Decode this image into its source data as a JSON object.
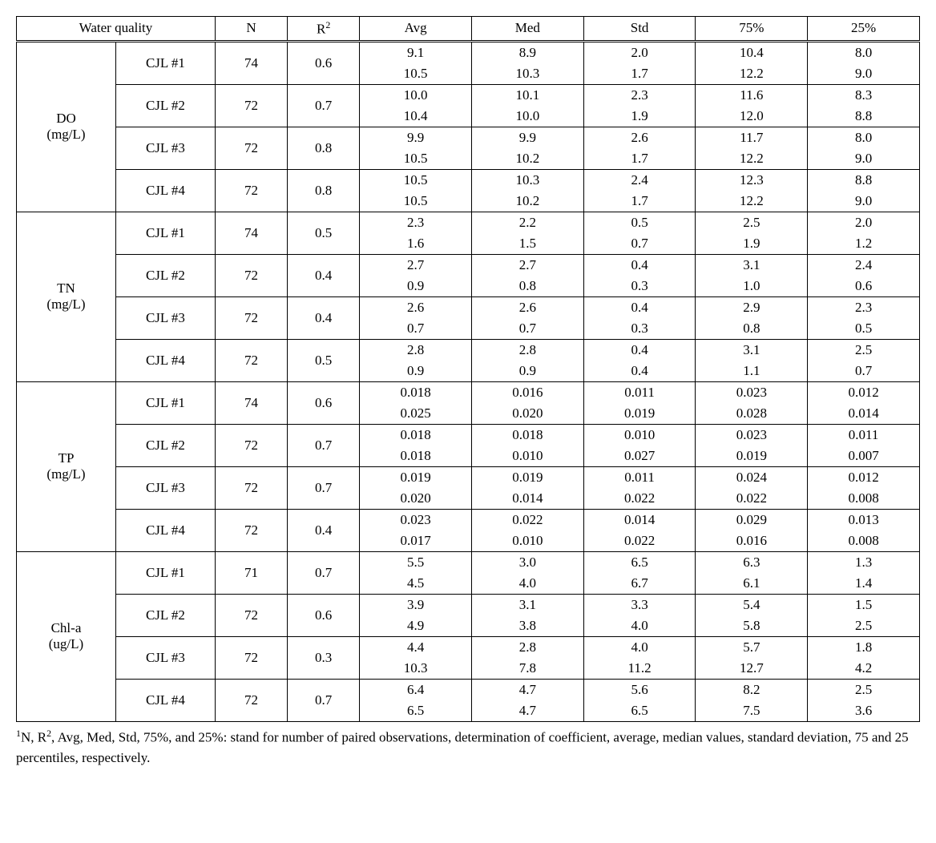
{
  "headers": {
    "wq": "Water quality",
    "n": "N",
    "r2_html": "R<sup>2</sup>",
    "avg": "Avg",
    "med": "Med",
    "std": "Std",
    "p75": "75%",
    "p25": "25%"
  },
  "caption_html": "<sup>1</sup>N, R<sup>2</sup>, Avg, Med, Std, 75%, and 25%: stand for number of paired observations, determination of coefficient, average, median values, standard deviation, 75 and 25 percentiles, respectively.",
  "groups": [
    {
      "param_html": "DO<br>(mg/L)",
      "sites": [
        {
          "site": "CJL #1",
          "n": "74",
          "r2": "0.6",
          "rows": [
            [
              "9.1",
              "8.9",
              "2.0",
              "10.4",
              "8.0"
            ],
            [
              "10.5",
              "10.3",
              "1.7",
              "12.2",
              "9.0"
            ]
          ]
        },
        {
          "site": "CJL #2",
          "n": "72",
          "r2": "0.7",
          "rows": [
            [
              "10.0",
              "10.1",
              "2.3",
              "11.6",
              "8.3"
            ],
            [
              "10.4",
              "10.0",
              "1.9",
              "12.0",
              "8.8"
            ]
          ]
        },
        {
          "site": "CJL #3",
          "n": "72",
          "r2": "0.8",
          "rows": [
            [
              "9.9",
              "9.9",
              "2.6",
              "11.7",
              "8.0"
            ],
            [
              "10.5",
              "10.2",
              "1.7",
              "12.2",
              "9.0"
            ]
          ]
        },
        {
          "site": "CJL #4",
          "n": "72",
          "r2": "0.8",
          "rows": [
            [
              "10.5",
              "10.3",
              "2.4",
              "12.3",
              "8.8"
            ],
            [
              "10.5",
              "10.2",
              "1.7",
              "12.2",
              "9.0"
            ]
          ]
        }
      ]
    },
    {
      "param_html": "TN<br>(mg/L)",
      "sites": [
        {
          "site": "CJL #1",
          "n": "74",
          "r2": "0.5",
          "rows": [
            [
              "2.3",
              "2.2",
              "0.5",
              "2.5",
              "2.0"
            ],
            [
              "1.6",
              "1.5",
              "0.7",
              "1.9",
              "1.2"
            ]
          ]
        },
        {
          "site": "CJL #2",
          "n": "72",
          "r2": "0.4",
          "rows": [
            [
              "2.7",
              "2.7",
              "0.4",
              "3.1",
              "2.4"
            ],
            [
              "0.9",
              "0.8",
              "0.3",
              "1.0",
              "0.6"
            ]
          ]
        },
        {
          "site": "CJL #3",
          "n": "72",
          "r2": "0.4",
          "rows": [
            [
              "2.6",
              "2.6",
              "0.4",
              "2.9",
              "2.3"
            ],
            [
              "0.7",
              "0.7",
              "0.3",
              "0.8",
              "0.5"
            ]
          ]
        },
        {
          "site": "CJL #4",
          "n": "72",
          "r2": "0.5",
          "rows": [
            [
              "2.8",
              "2.8",
              "0.4",
              "3.1",
              "2.5"
            ],
            [
              "0.9",
              "0.9",
              "0.4",
              "1.1",
              "0.7"
            ]
          ]
        }
      ]
    },
    {
      "param_html": "TP<br>(mg/L)",
      "sites": [
        {
          "site": "CJL #1",
          "n": "74",
          "r2": "0.6",
          "rows": [
            [
              "0.018",
              "0.016",
              "0.011",
              "0.023",
              "0.012"
            ],
            [
              "0.025",
              "0.020",
              "0.019",
              "0.028",
              "0.014"
            ]
          ]
        },
        {
          "site": "CJL #2",
          "n": "72",
          "r2": "0.7",
          "rows": [
            [
              "0.018",
              "0.018",
              "0.010",
              "0.023",
              "0.011"
            ],
            [
              "0.018",
              "0.010",
              "0.027",
              "0.019",
              "0.007"
            ]
          ]
        },
        {
          "site": "CJL #3",
          "n": "72",
          "r2": "0.7",
          "rows": [
            [
              "0.019",
              "0.019",
              "0.011",
              "0.024",
              "0.012"
            ],
            [
              "0.020",
              "0.014",
              "0.022",
              "0.022",
              "0.008"
            ]
          ]
        },
        {
          "site": "CJL #4",
          "n": "72",
          "r2": "0.4",
          "rows": [
            [
              "0.023",
              "0.022",
              "0.014",
              "0.029",
              "0.013"
            ],
            [
              "0.017",
              "0.010",
              "0.022",
              "0.016",
              "0.008"
            ]
          ]
        }
      ]
    },
    {
      "param_html": "Chl-a<br>(ug/L)",
      "sites": [
        {
          "site": "CJL #1",
          "n": "71",
          "r2": "0.7",
          "rows": [
            [
              "5.5",
              "3.0",
              "6.5",
              "6.3",
              "1.3"
            ],
            [
              "4.5",
              "4.0",
              "6.7",
              "6.1",
              "1.4"
            ]
          ]
        },
        {
          "site": "CJL #2",
          "n": "72",
          "r2": "0.6",
          "rows": [
            [
              "3.9",
              "3.1",
              "3.3",
              "5.4",
              "1.5"
            ],
            [
              "4.9",
              "3.8",
              "4.0",
              "5.8",
              "2.5"
            ]
          ]
        },
        {
          "site": "CJL #3",
          "n": "72",
          "r2": "0.3",
          "rows": [
            [
              "4.4",
              "2.8",
              "4.0",
              "5.7",
              "1.8"
            ],
            [
              "10.3",
              "7.8",
              "11.2",
              "12.7",
              "4.2"
            ]
          ]
        },
        {
          "site": "CJL #4",
          "n": "72",
          "r2": "0.7",
          "rows": [
            [
              "6.4",
              "4.7",
              "5.6",
              "8.2",
              "2.5"
            ],
            [
              "6.5",
              "4.7",
              "6.5",
              "7.5",
              "3.6"
            ]
          ]
        }
      ]
    }
  ]
}
